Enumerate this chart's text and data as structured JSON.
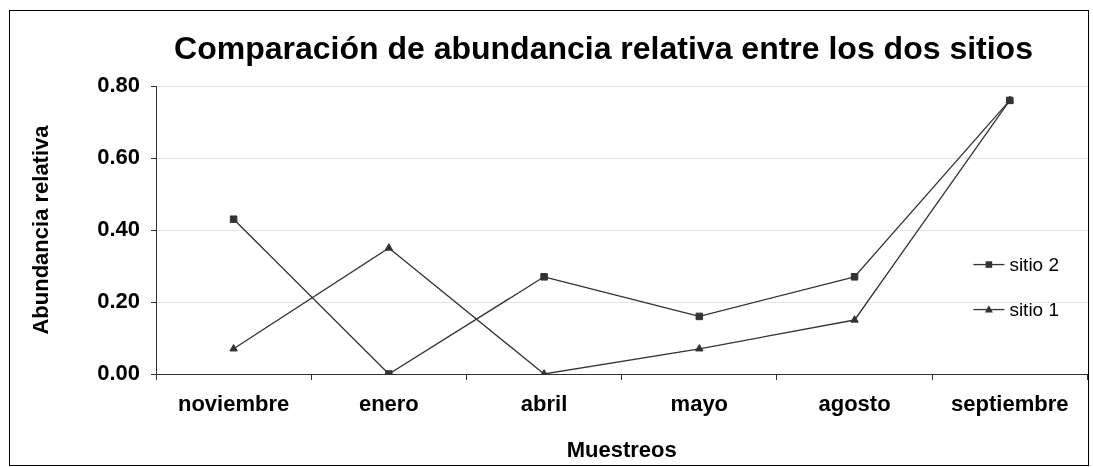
{
  "chart_data": {
    "type": "line",
    "title": "Comparación de abundancia relativa entre los dos sitios",
    "xlabel": "Muestreos",
    "ylabel": "Abundancia relativa",
    "categories": [
      "noviembre",
      "enero",
      "abril",
      "mayo",
      "agosto",
      "septiembre"
    ],
    "series": [
      {
        "name": "sitio 2",
        "color": "#333333",
        "marker": "square",
        "values": [
          0.43,
          0,
          0.27,
          0.16,
          0.27,
          0.76
        ]
      },
      {
        "name": "sitio 1",
        "color": "#333333",
        "marker": "triangle",
        "values": [
          0.07,
          0.35,
          0,
          0.07,
          0.15,
          0.76
        ]
      }
    ],
    "ylim": [
      0,
      0.8
    ],
    "yticks": [
      {
        "value": 0,
        "label": "0.00"
      },
      {
        "value": 0.2,
        "label": "0.20"
      },
      {
        "value": 0.4,
        "label": "0.40"
      },
      {
        "value": 0.6,
        "label": "0.60"
      },
      {
        "value": 0.8,
        "label": "0.80"
      }
    ],
    "grid": "y",
    "legend": "right",
    "line_style": "solid"
  }
}
